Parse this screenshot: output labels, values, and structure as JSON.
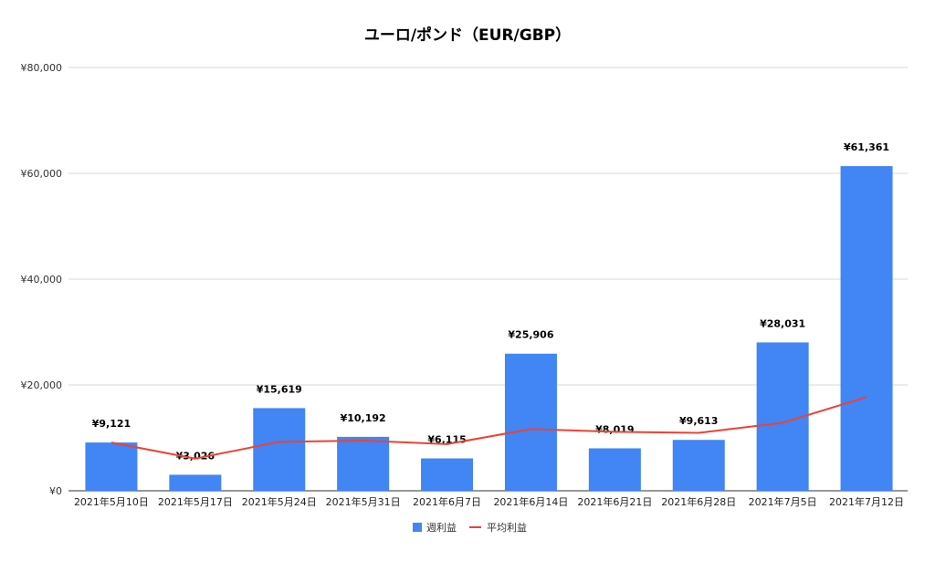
{
  "chart_data": {
    "type": "bar",
    "title": "ユーロ/ポンド（EUR/GBP）",
    "categories": [
      "2021年5月10日",
      "2021年5月17日",
      "2021年5月24日",
      "2021年5月31日",
      "2021年6月7日",
      "2021年6月14日",
      "2021年6月21日",
      "2021年6月28日",
      "2021年7月5日",
      "2021年7月12日"
    ],
    "series": [
      {
        "name": "週利益",
        "type": "bar",
        "color": "#4285f4",
        "values": [
          9121,
          3026,
          15619,
          10192,
          6115,
          25906,
          8019,
          9613,
          28031,
          61361
        ],
        "labels": [
          "¥9,121",
          "¥3,026",
          "¥15,619",
          "¥10,192",
          "¥6,115",
          "¥25,906",
          "¥8,019",
          "¥9,613",
          "¥28,031",
          "¥61,361"
        ]
      },
      {
        "name": "平均利益",
        "type": "line",
        "color": "#ea4335",
        "values": [
          9121,
          6074,
          9255,
          9490,
          8814,
          11663,
          11143,
          10952,
          12850,
          17701
        ]
      }
    ],
    "yticks": [
      0,
      20000,
      40000,
      60000,
      80000
    ],
    "ytick_labels": [
      "¥0",
      "¥20,000",
      "¥40,000",
      "¥60,000",
      "¥80,000"
    ],
    "ylim": [
      0,
      80000
    ],
    "grid": true,
    "legend_position": "bottom"
  }
}
